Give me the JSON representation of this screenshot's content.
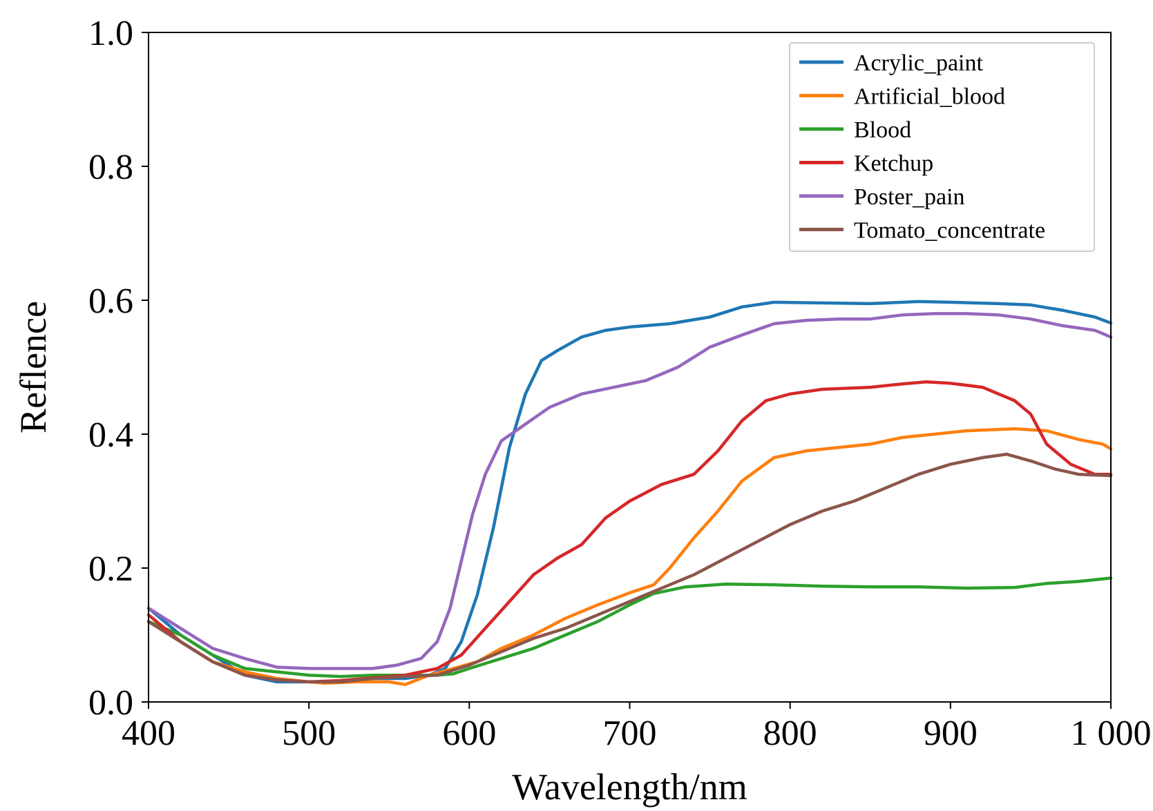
{
  "chart_data": {
    "type": "line",
    "title": "",
    "xlabel": "Wavelength/nm",
    "ylabel": "Reflence",
    "xlim": [
      400,
      1000
    ],
    "ylim": [
      0.0,
      1.0
    ],
    "x_ticks": [
      400,
      500,
      600,
      700,
      800,
      900,
      1000
    ],
    "x_tick_labels": [
      "400",
      "500",
      "600",
      "700",
      "800",
      "900",
      "1 000"
    ],
    "y_ticks": [
      0.0,
      0.2,
      0.4,
      0.6,
      0.8,
      1.0
    ],
    "y_tick_labels": [
      "0.0",
      "0.2",
      "0.4",
      "0.6",
      "0.8",
      "1.0"
    ],
    "grid": false,
    "legend_position": "top-right",
    "series": [
      {
        "name": "Acrylic_paint",
        "color": "#1f77b4",
        "points": [
          [
            400,
            0.14
          ],
          [
            420,
            0.1
          ],
          [
            440,
            0.07
          ],
          [
            460,
            0.04
          ],
          [
            480,
            0.03
          ],
          [
            500,
            0.03
          ],
          [
            520,
            0.03
          ],
          [
            540,
            0.035
          ],
          [
            560,
            0.035
          ],
          [
            575,
            0.04
          ],
          [
            585,
            0.05
          ],
          [
            595,
            0.09
          ],
          [
            605,
            0.16
          ],
          [
            615,
            0.26
          ],
          [
            625,
            0.38
          ],
          [
            635,
            0.46
          ],
          [
            645,
            0.51
          ],
          [
            655,
            0.525
          ],
          [
            670,
            0.545
          ],
          [
            685,
            0.555
          ],
          [
            700,
            0.56
          ],
          [
            725,
            0.565
          ],
          [
            750,
            0.575
          ],
          [
            770,
            0.59
          ],
          [
            790,
            0.597
          ],
          [
            820,
            0.596
          ],
          [
            850,
            0.595
          ],
          [
            880,
            0.598
          ],
          [
            900,
            0.597
          ],
          [
            930,
            0.595
          ],
          [
            950,
            0.593
          ],
          [
            970,
            0.585
          ],
          [
            990,
            0.575
          ],
          [
            1000,
            0.566
          ]
        ]
      },
      {
        "name": "Artificial_blood",
        "color": "#ff7f0e",
        "points": [
          [
            400,
            0.12
          ],
          [
            420,
            0.09
          ],
          [
            440,
            0.06
          ],
          [
            460,
            0.045
          ],
          [
            480,
            0.035
          ],
          [
            500,
            0.03
          ],
          [
            510,
            0.028
          ],
          [
            530,
            0.03
          ],
          [
            550,
            0.03
          ],
          [
            560,
            0.026
          ],
          [
            575,
            0.04
          ],
          [
            590,
            0.05
          ],
          [
            605,
            0.06
          ],
          [
            620,
            0.08
          ],
          [
            640,
            0.1
          ],
          [
            660,
            0.125
          ],
          [
            680,
            0.145
          ],
          [
            700,
            0.163
          ],
          [
            715,
            0.175
          ],
          [
            725,
            0.2
          ],
          [
            740,
            0.245
          ],
          [
            755,
            0.285
          ],
          [
            770,
            0.33
          ],
          [
            790,
            0.365
          ],
          [
            810,
            0.375
          ],
          [
            830,
            0.38
          ],
          [
            850,
            0.385
          ],
          [
            870,
            0.395
          ],
          [
            890,
            0.4
          ],
          [
            910,
            0.405
          ],
          [
            940,
            0.408
          ],
          [
            960,
            0.405
          ],
          [
            980,
            0.392
          ],
          [
            995,
            0.385
          ],
          [
            1000,
            0.378
          ]
        ]
      },
      {
        "name": "Blood",
        "color": "#2ca02c",
        "points": [
          [
            400,
            0.12
          ],
          [
            420,
            0.1
          ],
          [
            440,
            0.07
          ],
          [
            460,
            0.05
          ],
          [
            480,
            0.045
          ],
          [
            500,
            0.04
          ],
          [
            520,
            0.038
          ],
          [
            540,
            0.04
          ],
          [
            560,
            0.04
          ],
          [
            580,
            0.04
          ],
          [
            590,
            0.042
          ],
          [
            600,
            0.05
          ],
          [
            620,
            0.065
          ],
          [
            640,
            0.08
          ],
          [
            660,
            0.1
          ],
          [
            680,
            0.12
          ],
          [
            700,
            0.145
          ],
          [
            715,
            0.162
          ],
          [
            735,
            0.172
          ],
          [
            760,
            0.176
          ],
          [
            790,
            0.175
          ],
          [
            820,
            0.173
          ],
          [
            850,
            0.172
          ],
          [
            880,
            0.172
          ],
          [
            910,
            0.17
          ],
          [
            940,
            0.171
          ],
          [
            960,
            0.177
          ],
          [
            980,
            0.18
          ],
          [
            1000,
            0.185
          ]
        ]
      },
      {
        "name": "Ketchup",
        "color": "#d62728",
        "points": [
          [
            400,
            0.13
          ],
          [
            420,
            0.09
          ],
          [
            440,
            0.06
          ],
          [
            460,
            0.04
          ],
          [
            480,
            0.033
          ],
          [
            500,
            0.03
          ],
          [
            520,
            0.032
          ],
          [
            540,
            0.036
          ],
          [
            560,
            0.04
          ],
          [
            580,
            0.05
          ],
          [
            595,
            0.07
          ],
          [
            610,
            0.11
          ],
          [
            625,
            0.15
          ],
          [
            640,
            0.19
          ],
          [
            655,
            0.215
          ],
          [
            670,
            0.235
          ],
          [
            685,
            0.275
          ],
          [
            700,
            0.3
          ],
          [
            720,
            0.325
          ],
          [
            740,
            0.34
          ],
          [
            755,
            0.375
          ],
          [
            770,
            0.42
          ],
          [
            785,
            0.45
          ],
          [
            800,
            0.46
          ],
          [
            820,
            0.467
          ],
          [
            850,
            0.47
          ],
          [
            870,
            0.475
          ],
          [
            885,
            0.478
          ],
          [
            900,
            0.476
          ],
          [
            920,
            0.47
          ],
          [
            940,
            0.45
          ],
          [
            950,
            0.43
          ],
          [
            960,
            0.385
          ],
          [
            975,
            0.355
          ],
          [
            990,
            0.34
          ],
          [
            1000,
            0.34
          ]
        ]
      },
      {
        "name": "Poster_pain",
        "color": "#9467bd",
        "points": [
          [
            400,
            0.14
          ],
          [
            420,
            0.11
          ],
          [
            440,
            0.08
          ],
          [
            460,
            0.065
          ],
          [
            480,
            0.052
          ],
          [
            500,
            0.05
          ],
          [
            520,
            0.05
          ],
          [
            540,
            0.05
          ],
          [
            555,
            0.055
          ],
          [
            570,
            0.065
          ],
          [
            580,
            0.09
          ],
          [
            588,
            0.14
          ],
          [
            595,
            0.21
          ],
          [
            602,
            0.28
          ],
          [
            610,
            0.34
          ],
          [
            620,
            0.39
          ],
          [
            635,
            0.415
          ],
          [
            650,
            0.44
          ],
          [
            670,
            0.46
          ],
          [
            690,
            0.47
          ],
          [
            710,
            0.48
          ],
          [
            730,
            0.5
          ],
          [
            750,
            0.53
          ],
          [
            770,
            0.548
          ],
          [
            790,
            0.565
          ],
          [
            810,
            0.57
          ],
          [
            830,
            0.572
          ],
          [
            850,
            0.572
          ],
          [
            870,
            0.578
          ],
          [
            890,
            0.58
          ],
          [
            910,
            0.58
          ],
          [
            930,
            0.578
          ],
          [
            950,
            0.572
          ],
          [
            970,
            0.562
          ],
          [
            990,
            0.555
          ],
          [
            1000,
            0.545
          ]
        ]
      },
      {
        "name": "Tomato_concentrate",
        "color": "#8c564b",
        "points": [
          [
            400,
            0.12
          ],
          [
            420,
            0.09
          ],
          [
            440,
            0.06
          ],
          [
            460,
            0.04
          ],
          [
            480,
            0.033
          ],
          [
            500,
            0.03
          ],
          [
            520,
            0.03
          ],
          [
            540,
            0.035
          ],
          [
            560,
            0.038
          ],
          [
            580,
            0.04
          ],
          [
            600,
            0.055
          ],
          [
            620,
            0.075
          ],
          [
            640,
            0.095
          ],
          [
            660,
            0.11
          ],
          [
            680,
            0.13
          ],
          [
            700,
            0.15
          ],
          [
            720,
            0.17
          ],
          [
            740,
            0.19
          ],
          [
            760,
            0.215
          ],
          [
            780,
            0.24
          ],
          [
            800,
            0.265
          ],
          [
            820,
            0.285
          ],
          [
            840,
            0.3
          ],
          [
            860,
            0.32
          ],
          [
            880,
            0.34
          ],
          [
            900,
            0.355
          ],
          [
            920,
            0.365
          ],
          [
            935,
            0.37
          ],
          [
            950,
            0.36
          ],
          [
            965,
            0.348
          ],
          [
            980,
            0.34
          ],
          [
            1000,
            0.338
          ]
        ]
      }
    ]
  }
}
